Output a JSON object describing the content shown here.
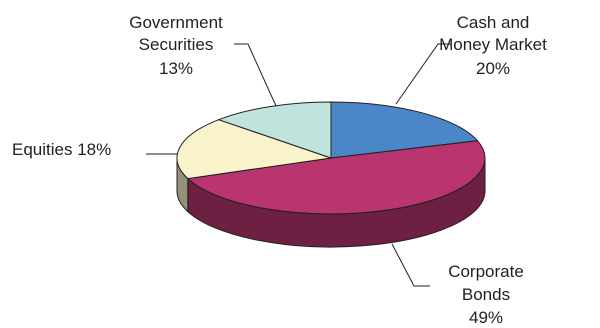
{
  "chart_data": {
    "type": "pie",
    "style": "3d",
    "title": "",
    "legend": "none",
    "slices": [
      {
        "label_lines": [
          "Cash and",
          "Money Market",
          "20%"
        ],
        "value": 20,
        "color": "#4a86c8"
      },
      {
        "label_lines": [
          "Corporate",
          "Bonds",
          "49%"
        ],
        "value": 49,
        "color": "#b83570"
      },
      {
        "label_lines": [
          "Equities 18%"
        ],
        "value": 18,
        "color": "#f8f3cb"
      },
      {
        "label_lines": [
          "Government",
          "Securities",
          "13%"
        ],
        "value": 13,
        "color": "#c0e3de"
      }
    ]
  }
}
